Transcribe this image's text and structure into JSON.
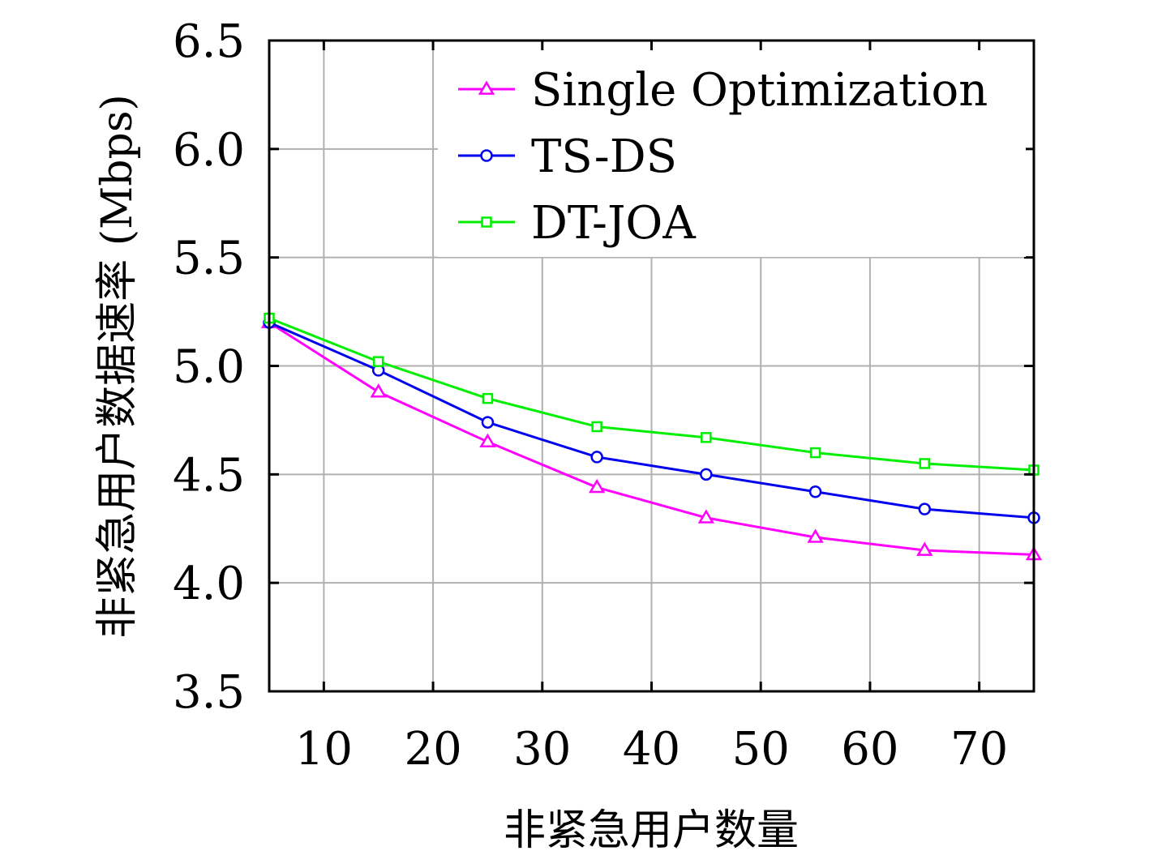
{
  "chart_data": {
    "type": "line",
    "xlabel": "非紧急用户数量",
    "ylabel": "非紧急用户数据速率 (Mbps)",
    "xlim": [
      5,
      75
    ],
    "ylim": [
      3.5,
      6.5
    ],
    "xticks": [
      "10",
      "20",
      "30",
      "40",
      "50",
      "60",
      "70"
    ],
    "yticks": [
      "3.5",
      "4.0",
      "4.5",
      "5.0",
      "5.5",
      "6.0",
      "6.5"
    ],
    "grid": true,
    "legend_position": "top-right",
    "x": [
      5,
      15,
      25,
      35,
      45,
      55,
      65,
      75
    ],
    "series": [
      {
        "name": "Single Optimization",
        "color": "#ff00ff",
        "marker": "triangle",
        "values": [
          5.2,
          4.88,
          4.65,
          4.44,
          4.3,
          4.21,
          4.15,
          4.13
        ]
      },
      {
        "name": "TS-DS",
        "color": "#0000ee",
        "marker": "circle",
        "values": [
          5.2,
          4.98,
          4.74,
          4.58,
          4.5,
          4.42,
          4.34,
          4.3
        ]
      },
      {
        "name": "DT-JOA",
        "color": "#00ee00",
        "marker": "square",
        "values": [
          5.22,
          5.02,
          4.85,
          4.72,
          4.67,
          4.6,
          4.55,
          4.52
        ]
      }
    ]
  }
}
